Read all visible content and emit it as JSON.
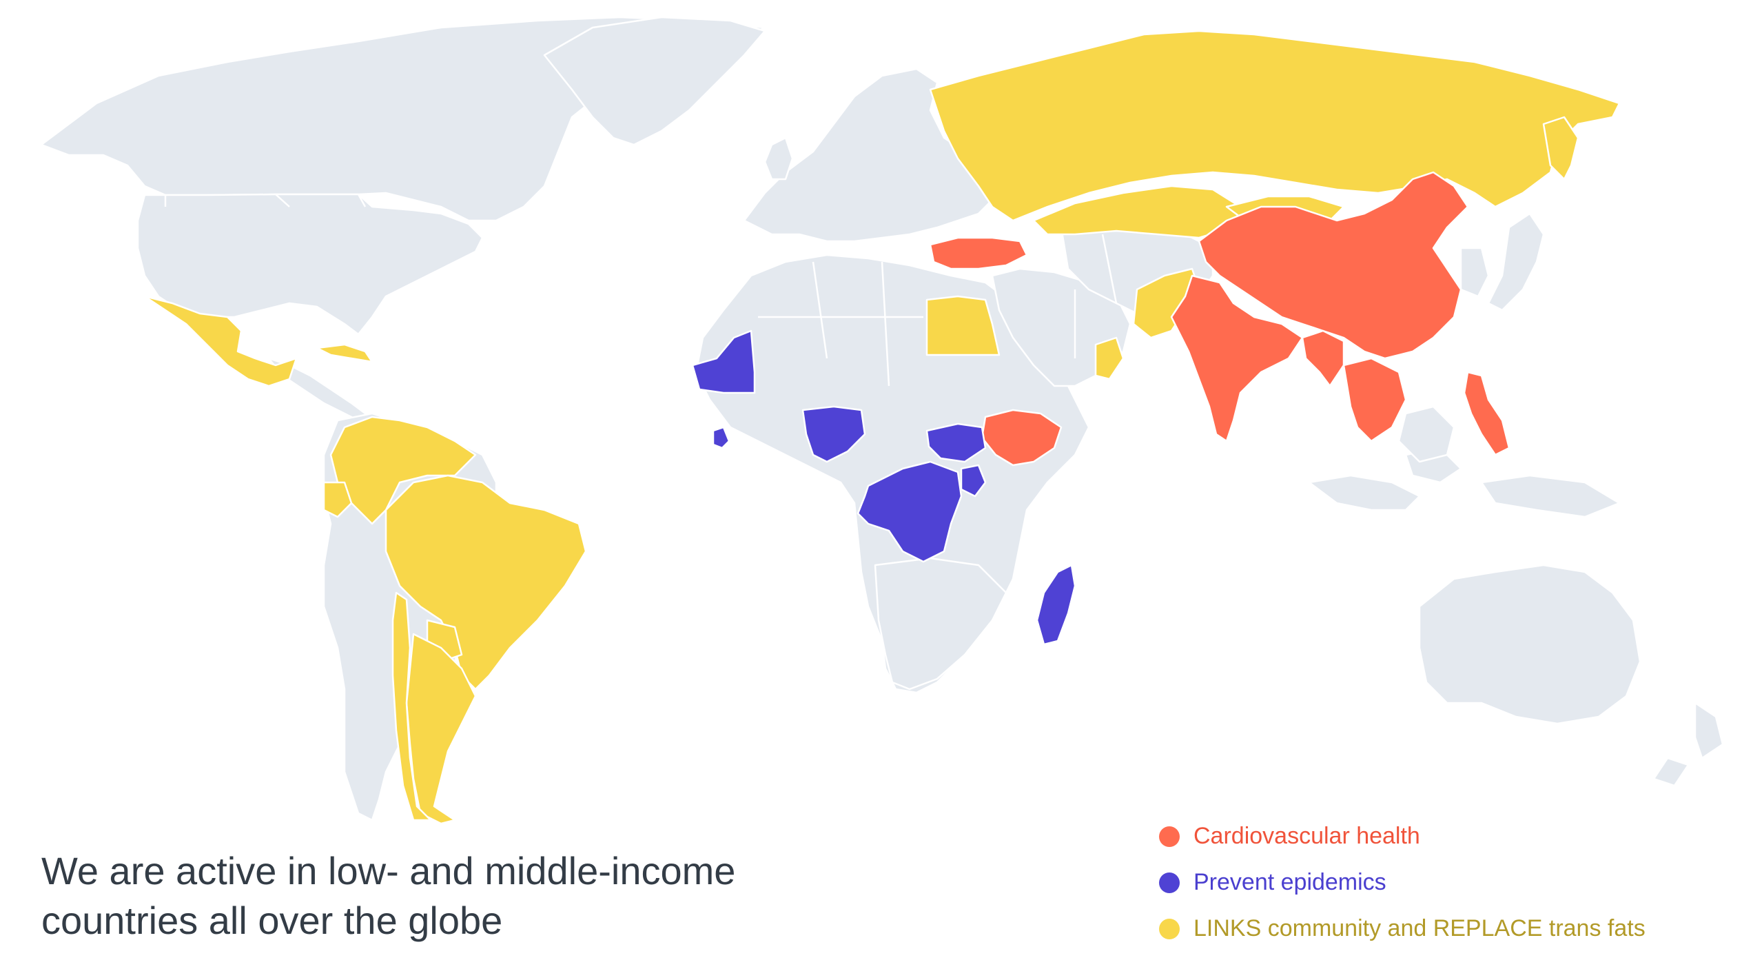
{
  "caption": {
    "line1": "We are active in low- and middle-income",
    "line2": "countries all over the globe"
  },
  "legend": [
    {
      "label": "Cardiovascular health",
      "color": "#ff6b4f",
      "label_color": "#f0533a"
    },
    {
      "label": "Prevent epidemics",
      "color": "#4f42d4",
      "label_color": "#4a3fcf"
    },
    {
      "label": "LINKS community and REPLACE trans fats",
      "color": "#f8d74a",
      "label_color": "#b29a28"
    }
  ],
  "colors": {
    "land": "#e4e9ef",
    "background": "#ffffff"
  },
  "regions": {
    "cardiovascular_health": [
      "Turkey",
      "Ethiopia",
      "India",
      "China",
      "Bangladesh",
      "Myanmar",
      "Thailand",
      "Vietnam",
      "Philippines"
    ],
    "prevent_epidemics": [
      "Mauritania",
      "Sierra Leone",
      "Nigeria",
      "South Sudan",
      "Uganda",
      "DR Congo",
      "Madagascar"
    ],
    "links_replace": [
      "Mexico",
      "Brazil",
      "Argentina",
      "Chile",
      "Colombia",
      "Venezuela",
      "Ecuador",
      "Paraguay",
      "Cuba",
      "Russia",
      "Kazakhstan",
      "Mongolia",
      "Pakistan",
      "Egypt",
      "Oman"
    ]
  }
}
